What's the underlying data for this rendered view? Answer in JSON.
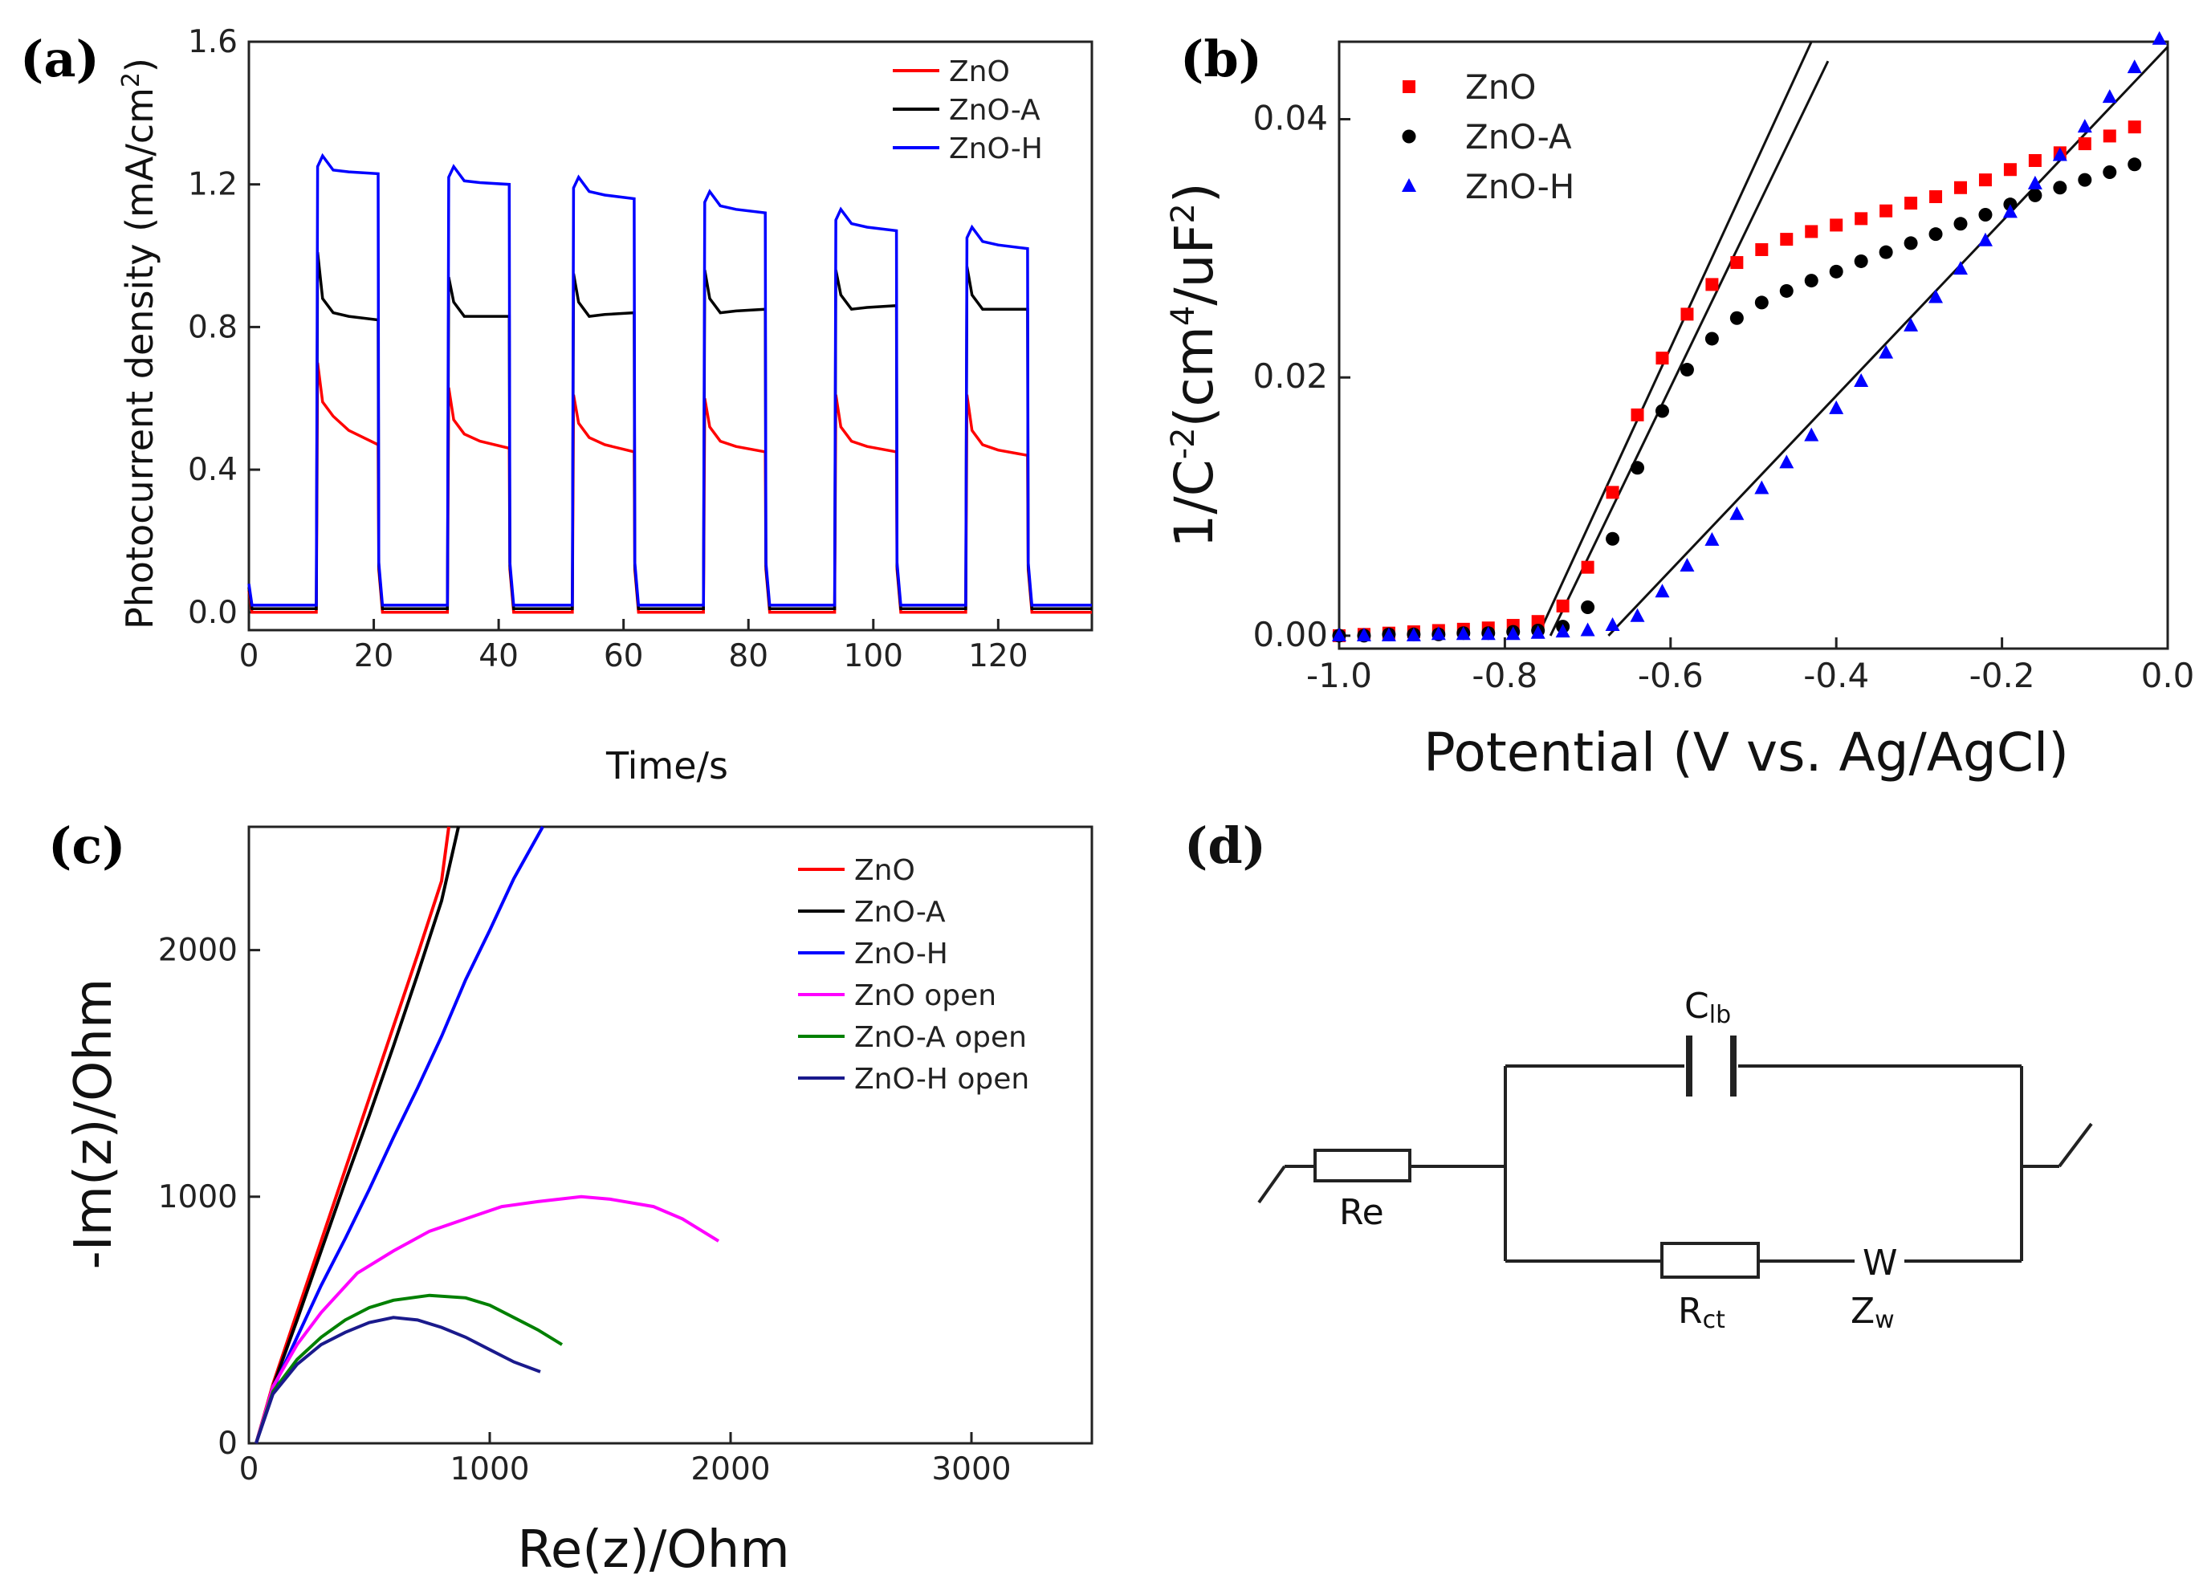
{
  "chart_data": [
    {
      "panel": "(a)",
      "type": "line",
      "xlabel": "Time/s",
      "ylabel": "Photocurrent density (mA/cm",
      "ylabel_sup": "2",
      "ylabel_end": ")",
      "xlim": [
        0,
        135
      ],
      "ylim": [
        -0.05,
        1.6
      ],
      "xticks": [
        0,
        20,
        40,
        60,
        80,
        100,
        120
      ],
      "yticks": [
        0.0,
        0.4,
        0.8,
        1.2,
        1.6
      ],
      "ytick_labels": [
        "0.0",
        "0.4",
        "0.8",
        "1.2",
        "1.6"
      ],
      "legend_position": "top-right",
      "series": [
        {
          "name": "ZnO",
          "color": "#ff0000",
          "dark": 0.0,
          "cycles": [
            [
              11,
              20.8,
              0.7,
              0.55,
              0.47
            ],
            [
              32,
              41.8,
              0.63,
              0.5,
              0.46
            ],
            [
              52,
              61.8,
              0.61,
              0.49,
              0.45
            ],
            [
              73,
              82.8,
              0.6,
              0.48,
              0.45
            ],
            [
              94,
              103.8,
              0.61,
              0.48,
              0.45
            ],
            [
              115,
              124.8,
              0.61,
              0.47,
              0.44
            ]
          ]
        },
        {
          "name": "ZnO-A",
          "color": "#000000",
          "dark": 0.01,
          "cycles": [
            [
              11,
              20.8,
              1.01,
              0.84,
              0.82
            ],
            [
              32,
              41.8,
              0.94,
              0.83,
              0.83
            ],
            [
              52,
              61.8,
              0.95,
              0.83,
              0.84
            ],
            [
              73,
              82.8,
              0.96,
              0.84,
              0.85
            ],
            [
              94,
              103.8,
              0.96,
              0.85,
              0.86
            ],
            [
              115,
              124.8,
              0.97,
              0.85,
              0.85
            ]
          ]
        },
        {
          "name": "ZnO-H",
          "color": "#0000ff",
          "dark": 0.02,
          "cycles": [
            [
              11,
              20.8,
              1.25,
              1.24,
              1.23
            ],
            [
              32,
              41.8,
              1.22,
              1.21,
              1.2
            ],
            [
              52,
              61.8,
              1.19,
              1.18,
              1.16
            ],
            [
              73,
              82.8,
              1.15,
              1.14,
              1.12
            ],
            [
              94,
              103.8,
              1.1,
              1.09,
              1.07
            ],
            [
              115,
              124.8,
              1.05,
              1.04,
              1.02
            ]
          ]
        }
      ]
    },
    {
      "panel": "(b)",
      "type": "scatter",
      "xlabel": "Potential (V vs. Ag/AgCl)",
      "ylabel": "1/C",
      "ylabel_sup1": "-2",
      "ylabel_mid": "(cm",
      "ylabel_sup2": "4",
      "ylabel_mid2": "/uF",
      "ylabel_sup3": "2",
      "ylabel_end": ")",
      "xlim": [
        -1.0,
        0.0
      ],
      "ylim": [
        -0.001,
        0.046
      ],
      "xticks": [
        -1.0,
        -0.8,
        -0.6,
        -0.4,
        -0.2,
        0.0
      ],
      "xtick_labels": [
        "-1.0",
        "-0.8",
        "-0.6",
        "-0.4",
        "-0.2",
        "0.0"
      ],
      "yticks": [
        0.0,
        0.02,
        0.04
      ],
      "ytick_labels": [
        "0.00",
        "0.02",
        "0.04"
      ],
      "legend_position": "top-left",
      "series": [
        {
          "name": "ZnO",
          "color": "#ff0000",
          "marker": "square",
          "x": [
            -1.0,
            -0.97,
            -0.94,
            -0.91,
            -0.88,
            -0.85,
            -0.82,
            -0.79,
            -0.76,
            -0.73,
            -0.7,
            -0.67,
            -0.64,
            -0.61,
            -0.58,
            -0.55,
            -0.52,
            -0.49,
            -0.46,
            -0.43,
            -0.4,
            -0.37,
            -0.34,
            -0.31,
            -0.28,
            -0.25,
            -0.22,
            -0.19,
            -0.16,
            -0.13,
            -0.1,
            -0.07,
            -0.04
          ],
          "y": [
            0.0,
            0.0001,
            0.0002,
            0.0003,
            0.0004,
            0.0005,
            0.0006,
            0.0008,
            0.0011,
            0.0023,
            0.0053,
            0.0111,
            0.0171,
            0.0215,
            0.0249,
            0.0272,
            0.0289,
            0.0299,
            0.0307,
            0.0313,
            0.0318,
            0.0323,
            0.0329,
            0.0335,
            0.034,
            0.0347,
            0.0353,
            0.0361,
            0.0368,
            0.0374,
            0.0381,
            0.0387,
            0.0394
          ]
        },
        {
          "name": "ZnO-A",
          "color": "#000000",
          "marker": "circle",
          "x": [
            -1.0,
            -0.97,
            -0.94,
            -0.91,
            -0.88,
            -0.85,
            -0.82,
            -0.79,
            -0.76,
            -0.73,
            -0.7,
            -0.67,
            -0.64,
            -0.61,
            -0.58,
            -0.55,
            -0.52,
            -0.49,
            -0.46,
            -0.43,
            -0.4,
            -0.37,
            -0.34,
            -0.31,
            -0.28,
            -0.25,
            -0.22,
            -0.19,
            -0.16,
            -0.13,
            -0.1,
            -0.07,
            -0.04
          ],
          "y": [
            0.0,
            0.0,
            0.0001,
            0.0001,
            0.0001,
            0.0002,
            0.0002,
            0.0003,
            0.0004,
            0.0007,
            0.0022,
            0.0075,
            0.013,
            0.0174,
            0.0206,
            0.023,
            0.0246,
            0.0258,
            0.0267,
            0.0275,
            0.0282,
            0.029,
            0.0297,
            0.0304,
            0.0311,
            0.0319,
            0.0326,
            0.0334,
            0.0341,
            0.0347,
            0.0353,
            0.0359,
            0.0365
          ]
        },
        {
          "name": "ZnO-H",
          "color": "#0000ff",
          "marker": "triangle",
          "x": [
            -1.0,
            -0.97,
            -0.94,
            -0.91,
            -0.88,
            -0.85,
            -0.82,
            -0.79,
            -0.76,
            -0.73,
            -0.7,
            -0.67,
            -0.64,
            -0.61,
            -0.58,
            -0.55,
            -0.52,
            -0.49,
            -0.46,
            -0.43,
            -0.4,
            -0.37,
            -0.34,
            -0.31,
            -0.28,
            -0.25,
            -0.22,
            -0.19,
            -0.16,
            -0.13,
            -0.1,
            -0.07,
            -0.04,
            -0.01
          ],
          "y": [
            0.0,
            0.0,
            0.0,
            0.0,
            0.0001,
            0.0001,
            0.0001,
            0.0001,
            0.0002,
            0.0003,
            0.0004,
            0.0008,
            0.0015,
            0.0034,
            0.0054,
            0.0074,
            0.0094,
            0.0114,
            0.0134,
            0.0155,
            0.0176,
            0.0197,
            0.0219,
            0.024,
            0.0262,
            0.0284,
            0.0306,
            0.0328,
            0.035,
            0.0372,
            0.0394,
            0.0417,
            0.044,
            0.0462
          ]
        }
      ],
      "fit_lines": [
        {
          "name": "ZnO fit",
          "x": [
            -0.76,
            -0.43
          ],
          "y": [
            0.0,
            0.046
          ]
        },
        {
          "name": "ZnO-A fit",
          "x": [
            -0.745,
            -0.41
          ],
          "y": [
            0.0,
            0.0445
          ]
        },
        {
          "name": "ZnO-H fit",
          "x": [
            -0.675,
            0.0
          ],
          "y": [
            0.0,
            0.0456
          ]
        }
      ]
    },
    {
      "panel": "(c)",
      "type": "line",
      "xlabel": "Re(z)/Ohm",
      "ylabel": "-Im(z)/Ohm",
      "xlim": [
        0,
        3500
      ],
      "ylim": [
        0,
        2500
      ],
      "xticks": [
        0,
        1000,
        2000,
        3000
      ],
      "yticks": [
        0,
        1000,
        2000
      ],
      "legend_position": "top-right",
      "series": [
        {
          "name": "ZnO",
          "color": "#ff0000",
          "x": [
            30,
            100,
            200,
            300,
            400,
            500,
            600,
            700,
            800,
            830
          ],
          "y": [
            0,
            240,
            530,
            820,
            1110,
            1400,
            1690,
            1980,
            2280,
            2500
          ]
        },
        {
          "name": "ZnO-A",
          "color": "#000000",
          "x": [
            30,
            100,
            200,
            300,
            400,
            500,
            600,
            700,
            800,
            870
          ],
          "y": [
            0,
            230,
            500,
            780,
            1060,
            1330,
            1610,
            1900,
            2200,
            2500
          ]
        },
        {
          "name": "ZnO-H",
          "color": "#0000ff",
          "x": [
            30,
            100,
            200,
            300,
            400,
            500,
            600,
            700,
            800,
            900,
            1000,
            1100,
            1220
          ],
          "y": [
            0,
            220,
            430,
            640,
            830,
            1030,
            1240,
            1440,
            1650,
            1880,
            2080,
            2290,
            2500
          ]
        },
        {
          "name": "ZnO    open",
          "color": "#ff00ff",
          "x": [
            30,
            100,
            200,
            300,
            450,
            600,
            750,
            900,
            1050,
            1200,
            1380,
            1500,
            1680,
            1800,
            1950
          ],
          "y": [
            0,
            230,
            400,
            530,
            690,
            780,
            860,
            910,
            960,
            980,
            1000,
            990,
            960,
            910,
            820
          ]
        },
        {
          "name": "ZnO-A open",
          "color": "#008000",
          "x": [
            30,
            100,
            200,
            300,
            400,
            500,
            600,
            750,
            900,
            1000,
            1100,
            1200,
            1300
          ],
          "y": [
            0,
            210,
            340,
            430,
            500,
            550,
            580,
            600,
            590,
            560,
            510,
            460,
            400
          ]
        },
        {
          "name": "ZnO-H open",
          "color": "#1a1a8c",
          "x": [
            30,
            100,
            200,
            300,
            400,
            500,
            600,
            700,
            800,
            900,
            1000,
            1100,
            1210
          ],
          "y": [
            0,
            200,
            320,
            400,
            450,
            490,
            510,
            500,
            470,
            430,
            380,
            330,
            290
          ]
        }
      ]
    }
  ],
  "panel_d": {
    "label": "(d)",
    "components": [
      {
        "name": "Re",
        "text": "Re",
        "sub": ""
      },
      {
        "name": "Clb",
        "text": "C",
        "sub": "lb"
      },
      {
        "name": "Rct",
        "text": "R",
        "sub": "ct"
      },
      {
        "name": "W",
        "text": "W",
        "sub": ""
      },
      {
        "name": "Zw",
        "text": "Z",
        "sub": "w"
      }
    ]
  }
}
